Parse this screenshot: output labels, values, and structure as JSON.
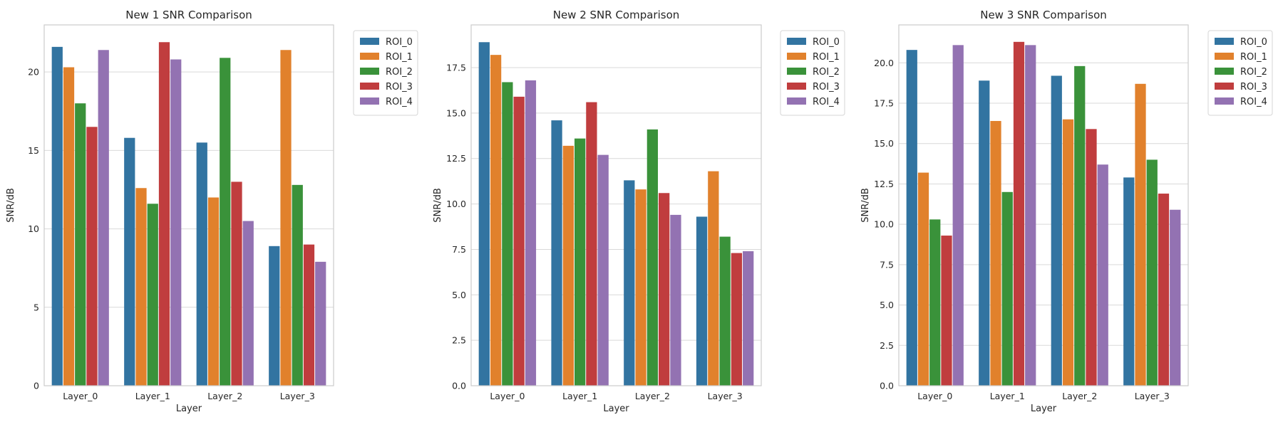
{
  "chart_data": [
    {
      "type": "bar",
      "title": "New 1 SNR Comparison",
      "xlabel": "Layer",
      "ylabel": "SNR/dB",
      "categories": [
        "Layer_0",
        "Layer_1",
        "Layer_2",
        "Layer_3"
      ],
      "ylim": [
        0,
        23
      ],
      "yticks": [
        0,
        5,
        10,
        15,
        20
      ],
      "ytick_labels": [
        "0",
        "5",
        "10",
        "15",
        "20"
      ],
      "grid": true,
      "legend_position": "outside-top-right",
      "series": [
        {
          "name": "ROI_0",
          "color": "#3274a1",
          "values": [
            21.6,
            15.8,
            15.5,
            8.9
          ]
        },
        {
          "name": "ROI_1",
          "color": "#e1812c",
          "values": [
            20.3,
            12.6,
            12.0,
            21.4
          ]
        },
        {
          "name": "ROI_2",
          "color": "#3a923a",
          "values": [
            18.0,
            11.6,
            20.9,
            12.8
          ]
        },
        {
          "name": "ROI_3",
          "color": "#c03d3e",
          "values": [
            16.5,
            21.9,
            13.0,
            9.0
          ]
        },
        {
          "name": "ROI_4",
          "color": "#9372b2",
          "values": [
            21.4,
            20.8,
            10.5,
            7.9
          ]
        }
      ]
    },
    {
      "type": "bar",
      "title": "New 2 SNR Comparison",
      "xlabel": "Layer",
      "ylabel": "SNR/dB",
      "categories": [
        "Layer_0",
        "Layer_1",
        "Layer_2",
        "Layer_3"
      ],
      "ylim": [
        0,
        19.85
      ],
      "yticks": [
        0,
        2.5,
        5,
        7.5,
        10,
        12.5,
        15,
        17.5
      ],
      "ytick_labels": [
        "0.0",
        "2.5",
        "5.0",
        "7.5",
        "10.0",
        "12.5",
        "15.0",
        "17.5"
      ],
      "grid": true,
      "legend_position": "outside-top-right",
      "series": [
        {
          "name": "ROI_0",
          "color": "#3274a1",
          "values": [
            18.9,
            14.6,
            11.3,
            9.3
          ]
        },
        {
          "name": "ROI_1",
          "color": "#e1812c",
          "values": [
            18.2,
            13.2,
            10.8,
            11.8
          ]
        },
        {
          "name": "ROI_2",
          "color": "#3a923a",
          "values": [
            16.7,
            13.6,
            14.1,
            8.2
          ]
        },
        {
          "name": "ROI_3",
          "color": "#c03d3e",
          "values": [
            15.9,
            15.6,
            10.6,
            7.3
          ]
        },
        {
          "name": "ROI_4",
          "color": "#9372b2",
          "values": [
            16.8,
            12.7,
            9.4,
            7.4
          ]
        }
      ]
    },
    {
      "type": "bar",
      "title": "New 3 SNR Comparison",
      "xlabel": "Layer",
      "ylabel": "SNR/dB",
      "categories": [
        "Layer_0",
        "Layer_1",
        "Layer_2",
        "Layer_3"
      ],
      "ylim": [
        0,
        22.35
      ],
      "yticks": [
        0,
        2.5,
        5,
        7.5,
        10,
        12.5,
        15,
        17.5,
        20
      ],
      "ytick_labels": [
        "0.0",
        "2.5",
        "5.0",
        "7.5",
        "10.0",
        "12.5",
        "15.0",
        "17.5",
        "20.0"
      ],
      "grid": true,
      "legend_position": "outside-top-right",
      "series": [
        {
          "name": "ROI_0",
          "color": "#3274a1",
          "values": [
            20.8,
            18.9,
            19.2,
            12.9
          ]
        },
        {
          "name": "ROI_1",
          "color": "#e1812c",
          "values": [
            13.2,
            16.4,
            16.5,
            18.7
          ]
        },
        {
          "name": "ROI_2",
          "color": "#3a923a",
          "values": [
            10.3,
            12.0,
            19.8,
            14.0
          ]
        },
        {
          "name": "ROI_3",
          "color": "#c03d3e",
          "values": [
            9.3,
            21.3,
            15.9,
            11.9
          ]
        },
        {
          "name": "ROI_4",
          "color": "#9372b2",
          "values": [
            21.1,
            21.1,
            13.7,
            10.9
          ]
        }
      ]
    }
  ]
}
